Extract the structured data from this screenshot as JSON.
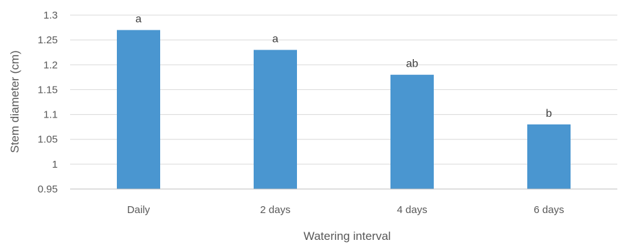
{
  "chart_data": {
    "type": "bar",
    "categories": [
      "Daily",
      "2 days",
      "4 days",
      "6 days"
    ],
    "values": [
      1.27,
      1.23,
      1.18,
      1.08
    ],
    "data_labels": [
      "a",
      "a",
      "ab",
      "b"
    ],
    "xlabel": "Watering interval",
    "ylabel": "Stem diameter (cm)",
    "ylim": [
      0.95,
      1.3
    ],
    "yticks": [
      "0.95",
      "1",
      "1.05",
      "1.1",
      "1.15",
      "1.2",
      "1.25",
      "1.3"
    ],
    "grid": true,
    "legend": "none",
    "colors": {
      "bar": "#4a96d0",
      "grid": "#d9d9d9",
      "axis": "#bfbfbf",
      "text": "#595959"
    }
  }
}
